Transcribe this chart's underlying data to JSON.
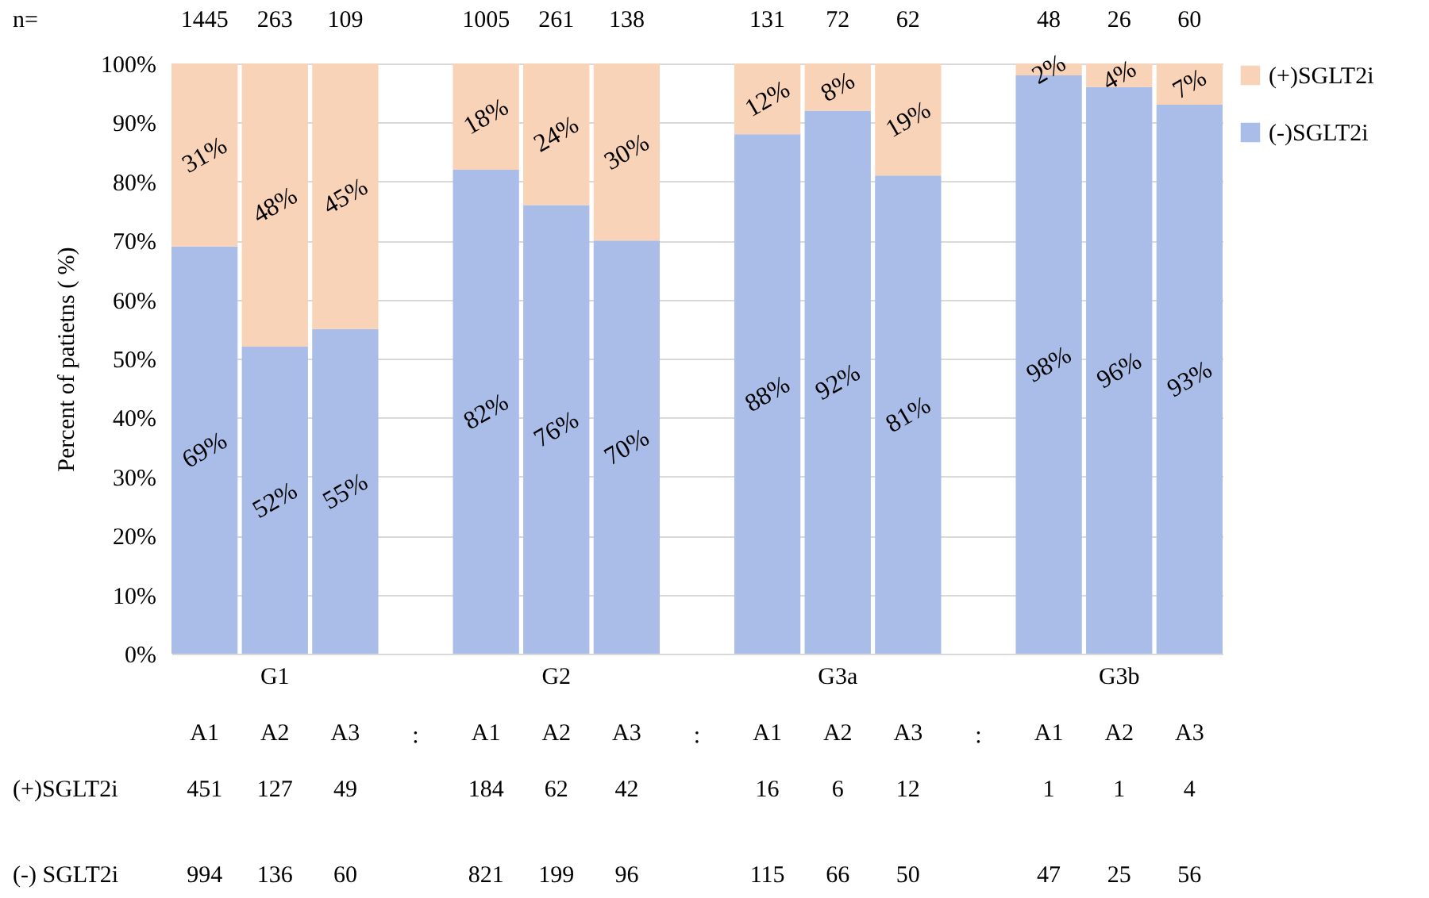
{
  "chart_data": {
    "type": "bar",
    "stacked": true,
    "ylabel": "Percent of patietns ( %)",
    "categories": [
      "A1",
      "A2",
      "A3",
      null,
      "A1",
      "A2",
      "A3",
      null,
      "A1",
      "A2",
      "A3",
      null,
      "A1",
      "A2",
      "A3"
    ],
    "series": [
      {
        "name": "(-)SGLT2i",
        "color": "#a9bde8",
        "values": [
          69,
          52,
          55,
          null,
          82,
          76,
          70,
          null,
          88,
          92,
          81,
          null,
          98,
          96,
          93
        ],
        "value_labels": [
          "69%",
          "52%",
          "55%",
          null,
          "82%",
          "76%",
          "70%",
          null,
          "88%",
          "92%",
          "81%",
          null,
          "98%",
          "96%",
          "93%"
        ]
      },
      {
        "name": "(+)SGLT2i",
        "color": "#f9d3b8",
        "values": [
          31,
          48,
          45,
          null,
          18,
          24,
          30,
          null,
          12,
          8,
          19,
          null,
          2,
          4,
          7
        ],
        "value_labels": [
          "31%",
          "48%",
          "45%",
          null,
          "18%",
          "24%",
          "30%",
          null,
          "12%",
          "8%",
          "19%",
          null,
          "2%",
          "4%",
          "7%"
        ]
      }
    ],
    "ylim": [
      0,
      100
    ],
    "yticks": [
      {
        "value": 0,
        "label": "0%"
      },
      {
        "value": 10,
        "label": "10%"
      },
      {
        "value": 20,
        "label": "20%"
      },
      {
        "value": 30,
        "label": "30%"
      },
      {
        "value": 40,
        "label": "40%"
      },
      {
        "value": 50,
        "label": "50%"
      },
      {
        "value": 60,
        "label": "60%"
      },
      {
        "value": 70,
        "label": "70%"
      },
      {
        "value": 80,
        "label": "80%"
      },
      {
        "value": 90,
        "label": "90%"
      },
      {
        "value": 100,
        "label": "100%"
      }
    ],
    "grid": "y",
    "legend": "top right",
    "annotations": [
      "G1",
      "G2",
      "G3a",
      "G3b",
      ":",
      ":",
      ":",
      "n=",
      "1445",
      "263",
      "109",
      "1005",
      "261",
      "138",
      "131",
      "72",
      "62",
      "48",
      "26",
      "60",
      "(+)SGLT2i",
      "451",
      "127",
      "49",
      "184",
      "62",
      "42",
      "16",
      "6",
      "12",
      "1",
      "1",
      "4",
      "(-) SGLT2i",
      "994",
      "136",
      "60",
      "821",
      "199",
      "96",
      "115",
      "66",
      "50",
      "47",
      "25",
      "56"
    ]
  }
}
